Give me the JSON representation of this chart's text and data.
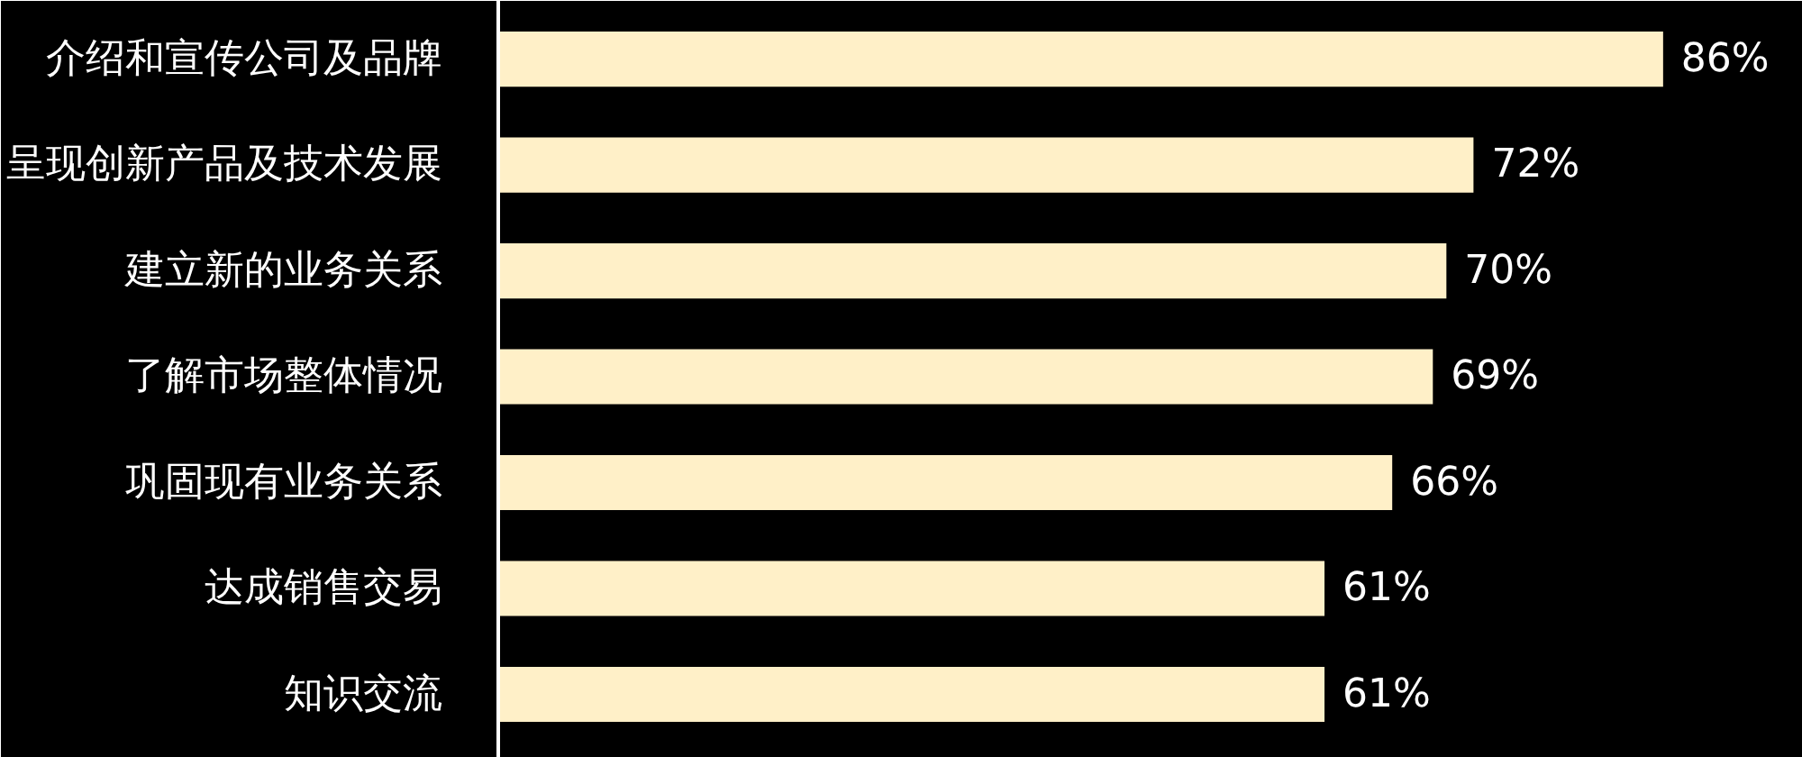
{
  "chart_data": {
    "type": "bar",
    "orientation": "horizontal",
    "categories": [
      "介绍和宣传公司及品牌",
      "呈现创新产品及技术发展",
      "建立新的业务关系",
      "了解市场整体情况",
      "巩固现有业务关系",
      "达成销售交易",
      "知识交流"
    ],
    "values": [
      86,
      72,
      70,
      69,
      66,
      61,
      61
    ],
    "value_labels": [
      "86%",
      "72%",
      "70%",
      "69%",
      "66%",
      "61%",
      "61%"
    ],
    "color": "#fff0c8",
    "grid": false
  }
}
